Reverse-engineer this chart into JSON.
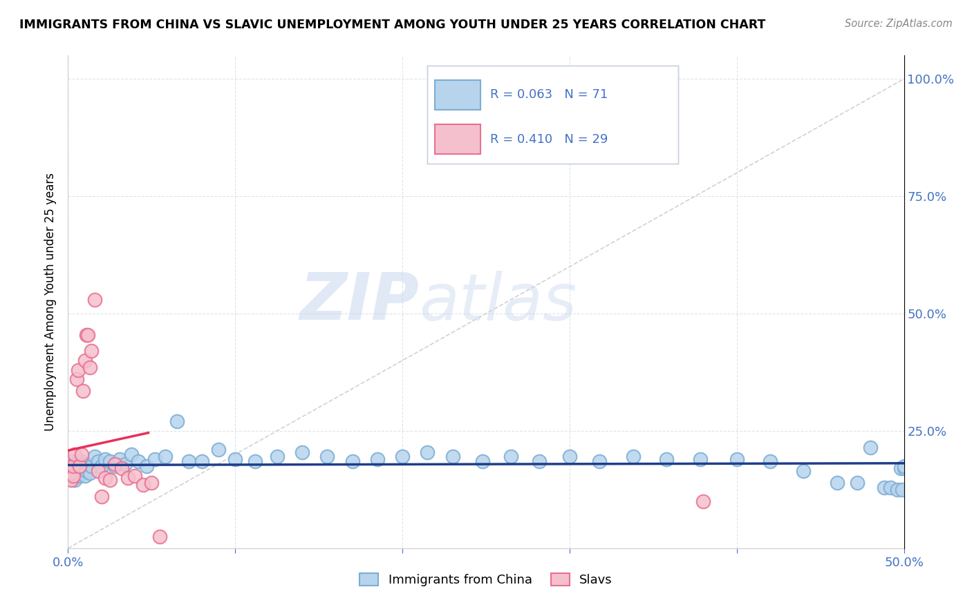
{
  "title": "IMMIGRANTS FROM CHINA VS SLAVIC UNEMPLOYMENT AMONG YOUTH UNDER 25 YEARS CORRELATION CHART",
  "source": "Source: ZipAtlas.com",
  "ylabel": "Unemployment Among Youth under 25 years",
  "xlim": [
    0.0,
    0.5
  ],
  "ylim": [
    0.0,
    1.05
  ],
  "china_color": "#b8d4ed",
  "china_edge_color": "#7badd4",
  "slavs_color": "#f5c0cd",
  "slavs_edge_color": "#e87090",
  "trendline_china_color": "#1f3d8a",
  "trendline_slavs_color": "#e8305a",
  "diagonal_color": "#cccccc",
  "R_china": 0.063,
  "N_china": 71,
  "R_slavs": 0.41,
  "N_slavs": 29,
  "legend_label_china": "Immigrants from China",
  "legend_label_slavs": "Slavs",
  "watermark_zip": "ZIP",
  "watermark_atlas": "atlas",
  "legend_text_color": "#4472c4",
  "axis_tick_color": "#4472c4",
  "china_x": [
    0.001,
    0.002,
    0.002,
    0.003,
    0.003,
    0.004,
    0.004,
    0.005,
    0.005,
    0.006,
    0.006,
    0.007,
    0.007,
    0.008,
    0.008,
    0.009,
    0.009,
    0.01,
    0.01,
    0.011,
    0.012,
    0.013,
    0.014,
    0.016,
    0.018,
    0.02,
    0.022,
    0.025,
    0.028,
    0.031,
    0.034,
    0.038,
    0.042,
    0.047,
    0.052,
    0.058,
    0.065,
    0.072,
    0.08,
    0.09,
    0.1,
    0.112,
    0.125,
    0.14,
    0.155,
    0.17,
    0.185,
    0.2,
    0.215,
    0.23,
    0.248,
    0.265,
    0.282,
    0.3,
    0.318,
    0.338,
    0.358,
    0.378,
    0.4,
    0.42,
    0.44,
    0.46,
    0.472,
    0.48,
    0.488,
    0.492,
    0.496,
    0.498,
    0.499,
    0.5,
    0.5
  ],
  "china_y": [
    0.175,
    0.155,
    0.185,
    0.16,
    0.175,
    0.145,
    0.17,
    0.155,
    0.18,
    0.165,
    0.185,
    0.155,
    0.175,
    0.165,
    0.185,
    0.16,
    0.18,
    0.155,
    0.175,
    0.165,
    0.18,
    0.16,
    0.175,
    0.195,
    0.185,
    0.175,
    0.19,
    0.185,
    0.175,
    0.19,
    0.18,
    0.2,
    0.185,
    0.175,
    0.19,
    0.195,
    0.27,
    0.185,
    0.185,
    0.21,
    0.19,
    0.185,
    0.195,
    0.205,
    0.195,
    0.185,
    0.19,
    0.195,
    0.205,
    0.195,
    0.185,
    0.195,
    0.185,
    0.195,
    0.185,
    0.195,
    0.19,
    0.19,
    0.19,
    0.185,
    0.165,
    0.14,
    0.14,
    0.215,
    0.13,
    0.13,
    0.125,
    0.17,
    0.125,
    0.17,
    0.175
  ],
  "slavs_x": [
    0.001,
    0.002,
    0.002,
    0.003,
    0.003,
    0.004,
    0.005,
    0.006,
    0.007,
    0.008,
    0.009,
    0.01,
    0.011,
    0.012,
    0.013,
    0.014,
    0.016,
    0.018,
    0.02,
    0.022,
    0.025,
    0.028,
    0.032,
    0.036,
    0.04,
    0.045,
    0.05,
    0.055,
    0.38
  ],
  "slavs_y": [
    0.175,
    0.145,
    0.16,
    0.155,
    0.175,
    0.2,
    0.36,
    0.38,
    0.175,
    0.2,
    0.335,
    0.4,
    0.455,
    0.455,
    0.385,
    0.42,
    0.53,
    0.165,
    0.11,
    0.15,
    0.145,
    0.18,
    0.17,
    0.15,
    0.155,
    0.135,
    0.14,
    0.025,
    0.1
  ]
}
